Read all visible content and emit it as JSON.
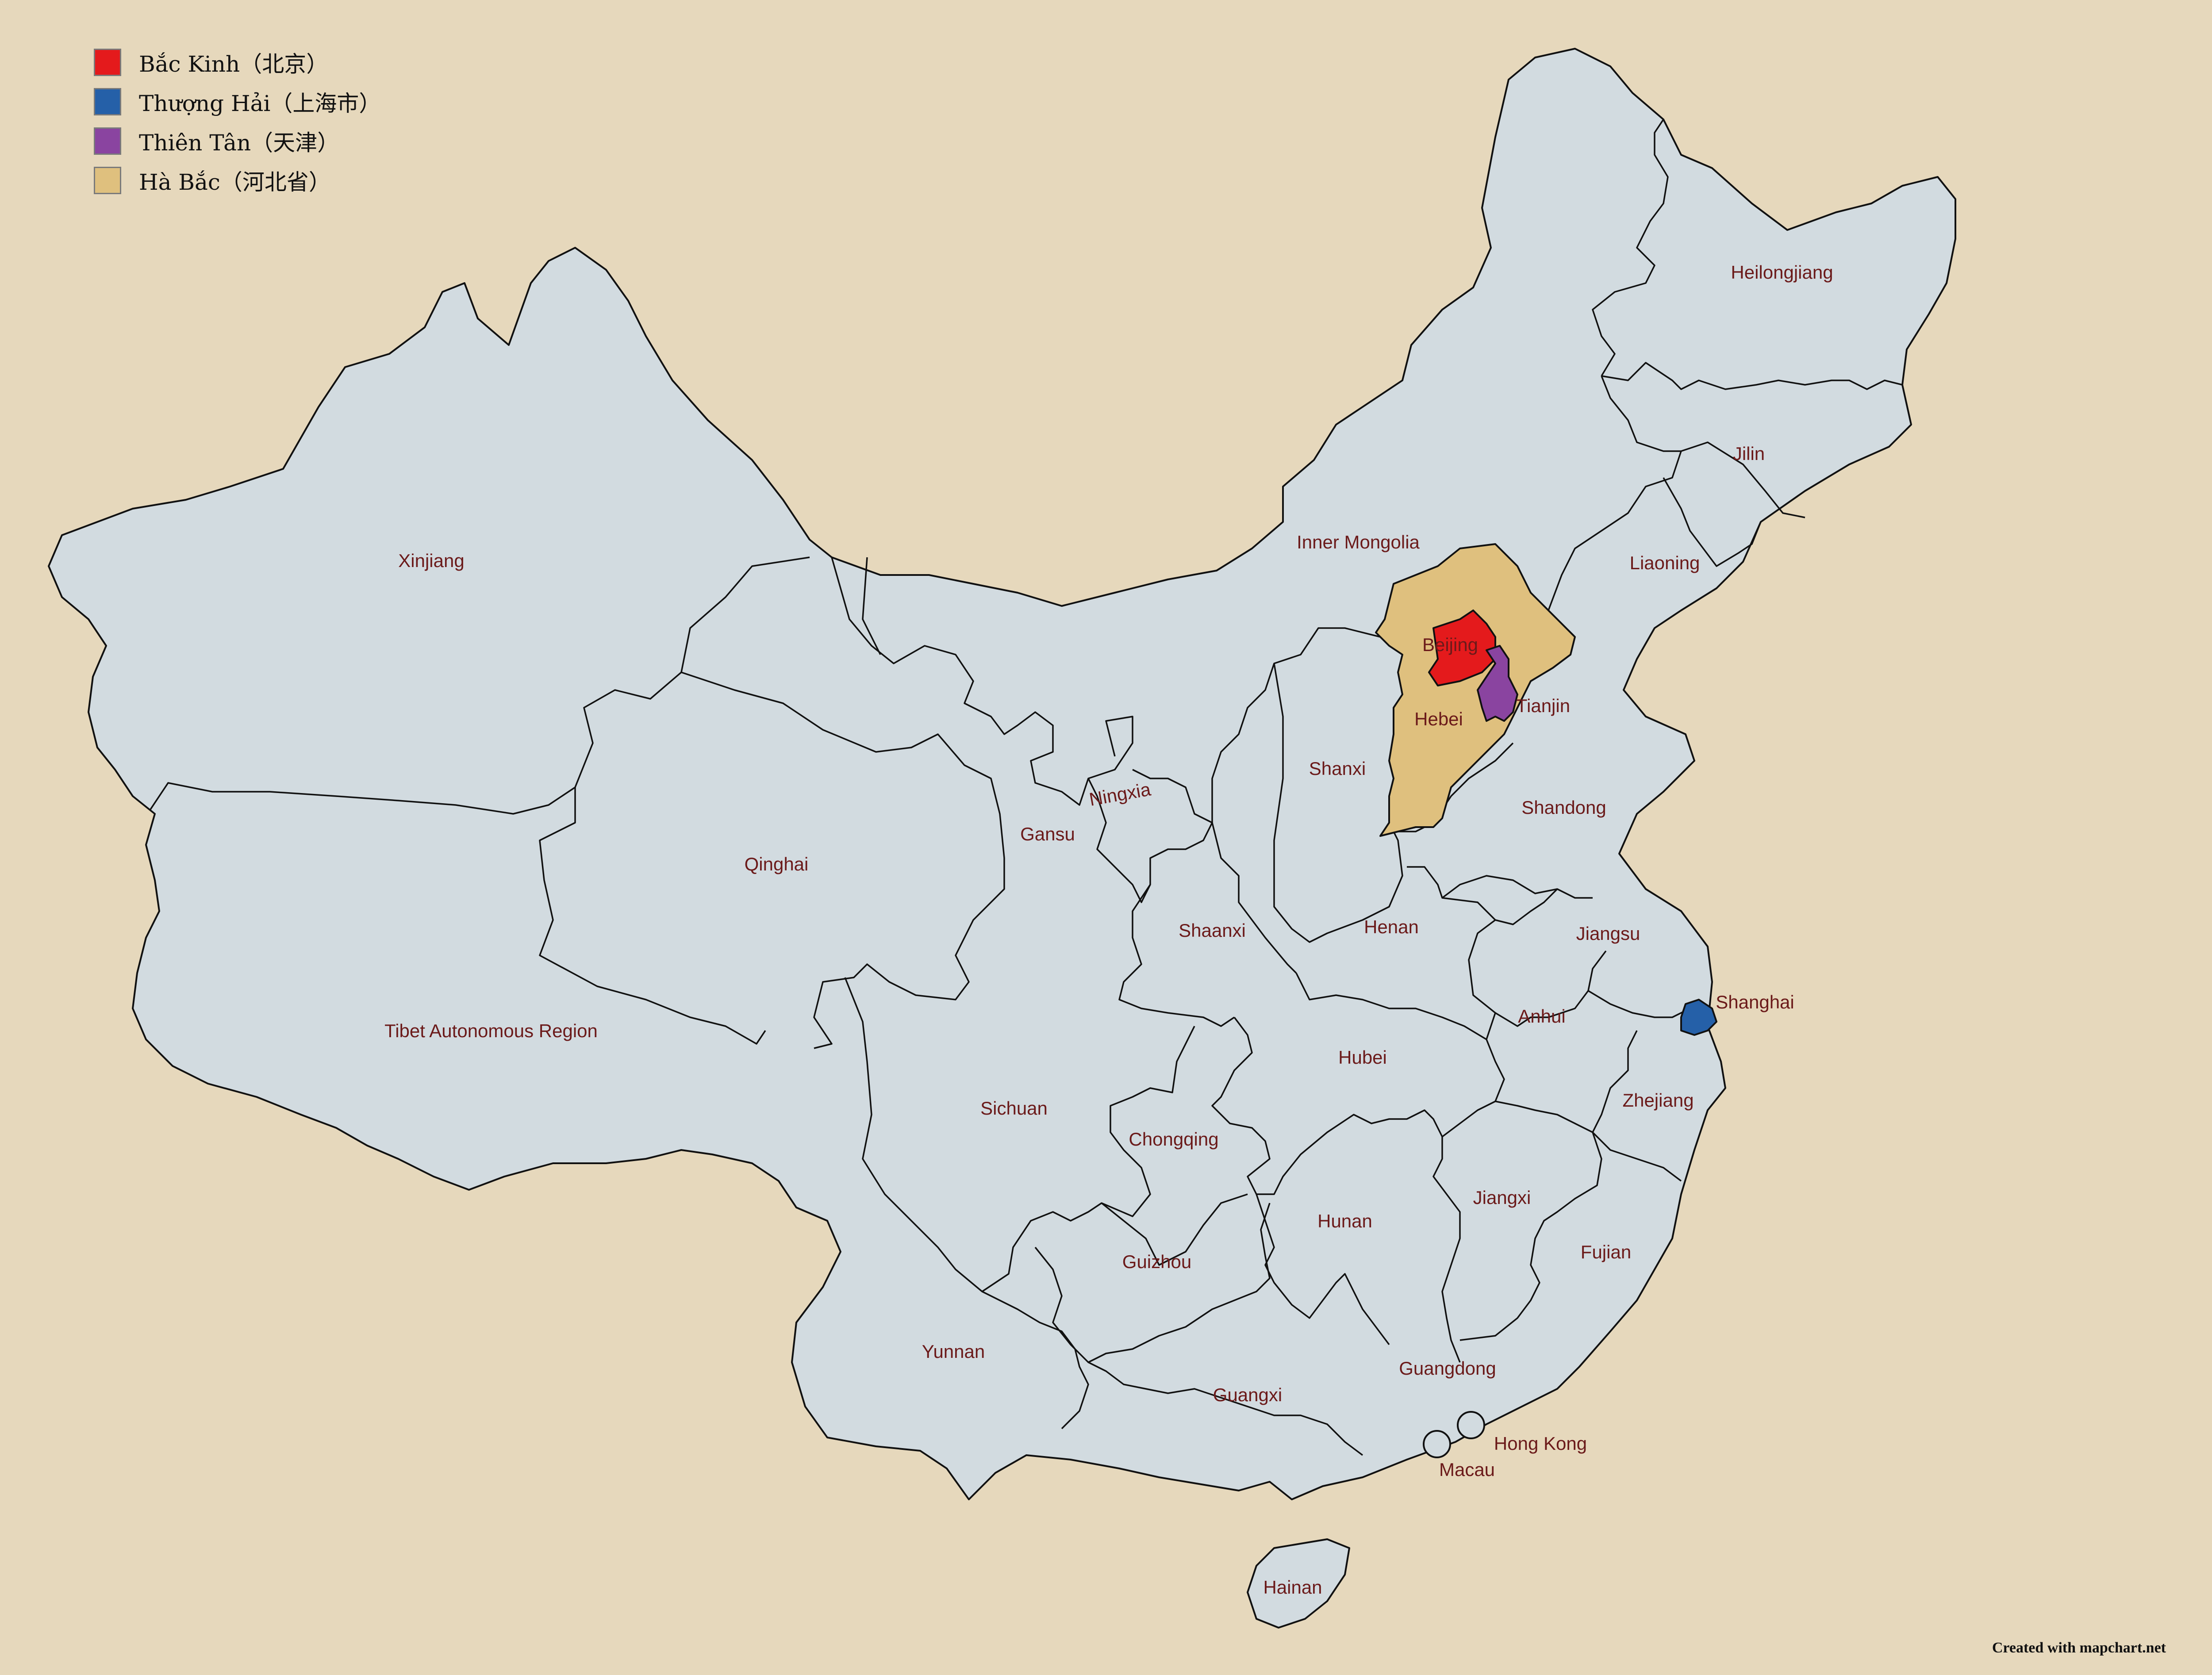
{
  "colors": {
    "background": "#e6d8bc",
    "province_fill": "#d2dbe0",
    "border": "#111111",
    "label": "#6b1a1a",
    "beijing": "#e41a1c",
    "shanghai": "#2560a8",
    "tianjin": "#8a44a0",
    "hebei": "#dfc07e"
  },
  "legend": [
    {
      "label": "Bắc Kinh（北京）",
      "color": "#e41a1c"
    },
    {
      "label": "Thượng Hải（上海市）",
      "color": "#2560a8"
    },
    {
      "label": "Thiên Tân（天津）",
      "color": "#8a44a0"
    },
    {
      "label": "Hà Bắc（河北省）",
      "color": "#dfc07e"
    }
  ],
  "labels": {
    "xinjiang": "Xinjiang",
    "tibet": "Tibet Autonomous Region",
    "qinghai": "Qinghai",
    "gansu": "Gansu",
    "ningxia": "Ningxia",
    "inner_mongolia": "Inner Mongolia",
    "heilongjiang": "Heilongjiang",
    "jilin": "Jilin",
    "liaoning": "Liaoning",
    "beijing": "Beijing",
    "tianjin": "Tianjin",
    "hebei": "Hebei",
    "shanxi": "Shanxi",
    "shandong": "Shandong",
    "henan": "Henan",
    "shaanxi": "Shaanxi",
    "jiangsu": "Jiangsu",
    "shanghai": "Shanghai",
    "anhui": "Anhui",
    "hubei": "Hubei",
    "zhejiang": "Zhejiang",
    "sichuan": "Sichuan",
    "chongqing": "Chongqing",
    "jiangxi": "Jiangxi",
    "hunan": "Hunan",
    "fujian": "Fujian",
    "guizhou": "Guizhou",
    "yunnan": "Yunnan",
    "guangdong": "Guangdong",
    "guangxi": "Guangxi",
    "hong_kong": "Hong Kong",
    "macau": "Macau",
    "hainan": "Hainan"
  },
  "credit": "Created with mapchart.net"
}
